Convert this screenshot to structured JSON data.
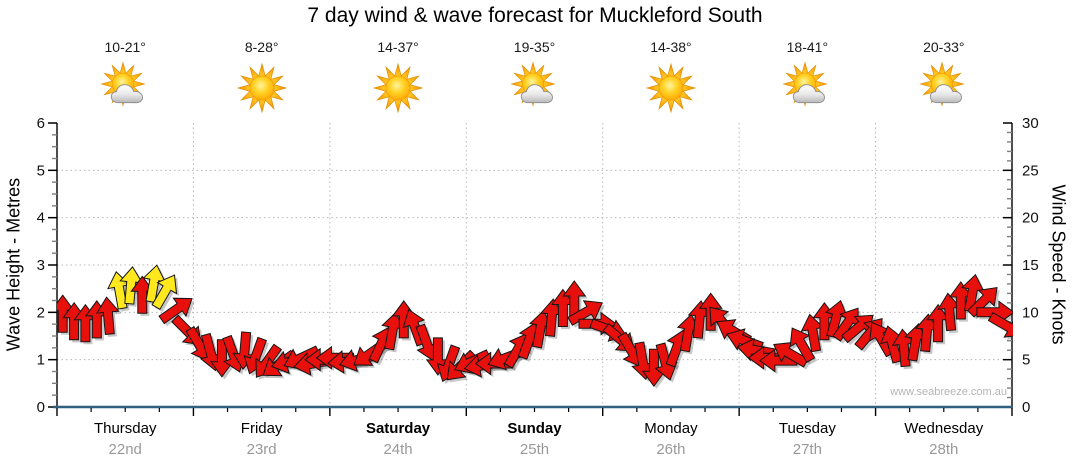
{
  "page": {
    "watermark": "www.seabreeze.com.au"
  },
  "days": [
    {
      "name": "Thursday",
      "date": "22nd",
      "temp": "10-21°",
      "icon": "partly-cloudy",
      "weekend": false
    },
    {
      "name": "Friday",
      "date": "23rd",
      "temp": "8-28°",
      "icon": "sunny",
      "weekend": false
    },
    {
      "name": "Saturday",
      "date": "24th",
      "temp": "14-37°",
      "icon": "sunny",
      "weekend": true
    },
    {
      "name": "Sunday",
      "date": "25th",
      "temp": "19-35°",
      "icon": "partly-cloudy",
      "weekend": true
    },
    {
      "name": "Monday",
      "date": "26th",
      "temp": "14-38°",
      "icon": "sunny",
      "weekend": false
    },
    {
      "name": "Tuesday",
      "date": "27th",
      "temp": "18-41°",
      "icon": "partly-cloudy",
      "weekend": false
    },
    {
      "name": "Wednesday",
      "date": "28th",
      "temp": "20-33°",
      "icon": "partly-cloudy",
      "weekend": false
    }
  ],
  "chart_data": {
    "type": "wind-arrow-timeseries",
    "title": "7 day wind & wave forecast for Muckleford South",
    "left_axis": {
      "label": "Wave Height - Metres",
      "min": 0,
      "max": 6,
      "major_step": 1,
      "minor_step": 0.25
    },
    "right_axis": {
      "label": "Wind Speed - Knots",
      "min": 0,
      "max": 30,
      "major_step": 5,
      "minor_step": 1
    },
    "x_axis": {
      "categories": [
        "Thursday 22nd",
        "Friday 23rd",
        "Saturday 24th",
        "Sunday 25th",
        "Monday 26th",
        "Tuesday 27th",
        "Wednesday 28th"
      ],
      "minor_ticks_per_day": 4,
      "grid_at_day_boundaries": true
    },
    "grid": {
      "horizontal_lines_metres": [
        1,
        2,
        3,
        4,
        5
      ],
      "style": "dotted"
    },
    "samples_per_day": 12,
    "wind_knots": [
      9.8,
      9.0,
      8.8,
      9.2,
      9.6,
      12.3,
      12.8,
      11.8,
      13.0,
      12.2,
      10.3,
      8.0,
      6.6,
      5.8,
      5.2,
      5.6,
      6.0,
      5.4,
      4.8,
      4.5,
      4.8,
      5.2,
      4.6,
      5.0,
      5.2,
      4.8,
      5.0,
      5.6,
      6.6,
      8.0,
      9.2,
      8.4,
      6.8,
      5.4,
      4.6,
      4.3,
      4.8,
      4.4,
      4.6,
      5.2,
      6.0,
      7.0,
      8.2,
      9.4,
      10.4,
      11.3,
      10.0,
      8.8,
      8.2,
      7.2,
      6.0,
      4.9,
      4.2,
      4.8,
      6.2,
      7.8,
      9.2,
      10.0,
      9.0,
      8.0,
      7.0,
      6.0,
      5.2,
      4.9,
      5.6,
      6.6,
      7.8,
      9.0,
      9.3,
      8.8,
      8.4,
      7.8,
      7.2,
      6.6,
      6.2,
      6.8,
      7.8,
      8.8,
      10.0,
      11.2,
      12.0,
      11.2,
      10.0,
      8.6
    ],
    "wind_dir_deg_from_up": [
      0,
      0,
      0,
      0,
      355,
      350,
      5,
      0,
      10,
      30,
      55,
      135,
      150,
      165,
      180,
      160,
      185,
      200,
      215,
      235,
      255,
      245,
      260,
      270,
      270,
      265,
      255,
      235,
      25,
      10,
      0,
      340,
      160,
      180,
      200,
      225,
      245,
      260,
      270,
      250,
      30,
      20,
      10,
      5,
      0,
      0,
      60,
      90,
      110,
      130,
      150,
      170,
      180,
      165,
      20,
      10,
      5,
      0,
      320,
      300,
      290,
      280,
      270,
      270,
      300,
      330,
      350,
      0,
      15,
      35,
      50,
      40,
      330,
      345,
      355,
      10,
      5,
      0,
      355,
      0,
      10,
      45,
      90,
      120
    ],
    "yellow_arrow_indices": [
      5,
      6,
      8,
      9
    ],
    "colors": {
      "arrow_red": "#e8100c",
      "arrow_yellow": "#ffe81e",
      "axis": "#000000",
      "bottom_axis": "#2f6080",
      "grid": "#b8b8b8",
      "date_text": "#999999",
      "watermark_text": "#b5b5b5"
    }
  }
}
